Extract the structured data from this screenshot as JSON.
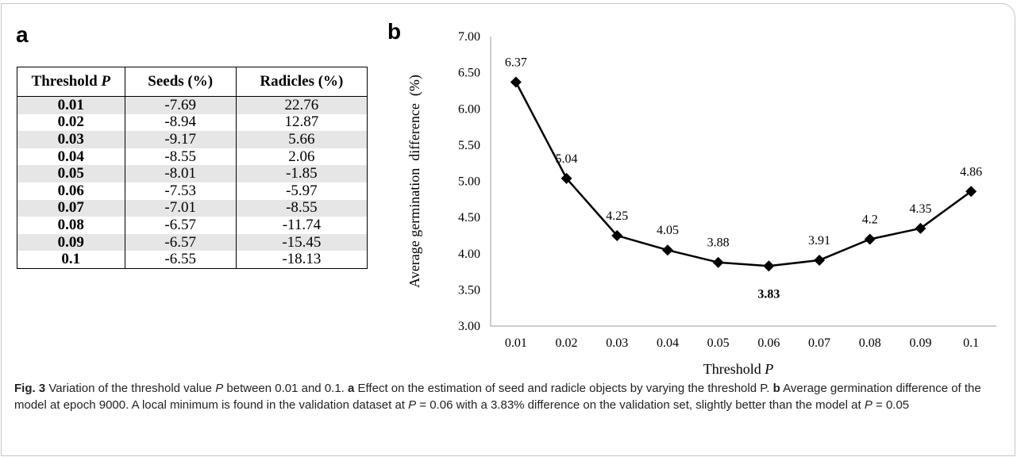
{
  "panel_a_letter": "a",
  "panel_b_letter": "b",
  "table": {
    "headers": {
      "threshold": "Threshold ",
      "threshold_var": "P",
      "seeds": "Seeds (%)",
      "radicles": "Radicles (%)"
    },
    "rows": [
      {
        "p": "0.01",
        "seeds": "-7.69",
        "radicles": "22.76"
      },
      {
        "p": "0.02",
        "seeds": "-8.94",
        "radicles": "12.87"
      },
      {
        "p": "0.03",
        "seeds": "-9.17",
        "radicles": "5.66"
      },
      {
        "p": "0.04",
        "seeds": "-8.55",
        "radicles": "2.06"
      },
      {
        "p": "0.05",
        "seeds": "-8.01",
        "radicles": "-1.85"
      },
      {
        "p": "0.06",
        "seeds": "-7.53",
        "radicles": "-5.97"
      },
      {
        "p": "0.07",
        "seeds": "-7.01",
        "radicles": "-8.55"
      },
      {
        "p": "0.08",
        "seeds": "-6.57",
        "radicles": "-11.74"
      },
      {
        "p": "0.09",
        "seeds": "-6.57",
        "radicles": "-15.45"
      },
      {
        "p": "0.1",
        "seeds": "-6.55",
        "radicles": "-18.13"
      }
    ]
  },
  "chart_data": {
    "type": "line",
    "categories": [
      "0.01",
      "0.02",
      "0.03",
      "0.04",
      "0.05",
      "0.06",
      "0.07",
      "0.08",
      "0.09",
      "0.1"
    ],
    "values": [
      6.37,
      5.04,
      4.25,
      4.05,
      3.88,
      3.83,
      3.91,
      4.2,
      4.35,
      4.86
    ],
    "data_labels": [
      "6.37",
      "5.04",
      "4.25",
      "4.05",
      "3.88",
      "3.83",
      "3.91",
      "4.2",
      "4.35",
      "4.86"
    ],
    "highlight_index": 5,
    "ylabel": "Average germination  difference  (%)",
    "xlabel": "Threshold ",
    "xlabel_var": "P",
    "ylim": [
      3.0,
      7.0
    ],
    "yticks": [
      "3.00",
      "3.50",
      "4.00",
      "4.50",
      "5.00",
      "5.50",
      "6.00",
      "6.50",
      "7.00"
    ],
    "grid": false,
    "marker": "diamond",
    "color": "#000000"
  },
  "caption": {
    "fig": "Fig. 3",
    "t1": "  Variation of the threshold value ",
    "p1": "P",
    "t2": " between 0.01 and 0.1. ",
    "a": "a",
    "t3": " Effect on the estimation of seed and radicle objects by varying the threshold P. ",
    "b": "b",
    "t4": " Average germination difference of the model at epoch 9000. A local minimum is found in the validation dataset at ",
    "p2": "P",
    "t5": " = 0.06 with a 3.83% difference on the validation set, slightly better than the model at ",
    "p3": "P",
    "t6": " = 0.05"
  }
}
